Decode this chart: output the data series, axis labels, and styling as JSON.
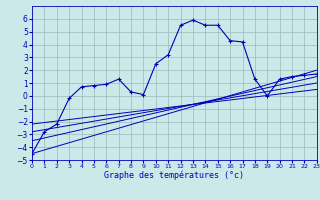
{
  "xlabel": "Graphe des températures (°c)",
  "x_main": [
    0,
    1,
    2,
    3,
    4,
    5,
    6,
    7,
    8,
    9,
    10,
    11,
    12,
    13,
    14,
    15,
    16,
    17,
    18,
    19,
    20,
    21,
    22,
    23
  ],
  "y_main": [
    -4.5,
    -2.8,
    -2.2,
    -0.2,
    0.7,
    0.8,
    0.9,
    1.3,
    0.3,
    0.1,
    2.5,
    3.2,
    5.5,
    5.9,
    5.5,
    5.5,
    4.3,
    4.2,
    1.3,
    0.0,
    1.3,
    1.5,
    1.6,
    1.7
  ],
  "straight_lines": [
    {
      "x0": 0,
      "y0": -4.5,
      "x1": 23,
      "y1": 2.0
    },
    {
      "x0": 0,
      "y0": -3.5,
      "x1": 23,
      "y1": 1.5
    },
    {
      "x0": 0,
      "y0": -2.8,
      "x1": 23,
      "y1": 1.0
    },
    {
      "x0": 0,
      "y0": -2.2,
      "x1": 23,
      "y1": 0.5
    }
  ],
  "xlim": [
    0,
    23
  ],
  "ylim": [
    -5,
    7
  ],
  "yticks": [
    -5,
    -4,
    -3,
    -2,
    -1,
    0,
    1,
    2,
    3,
    4,
    5,
    6
  ],
  "xticks": [
    0,
    1,
    2,
    3,
    4,
    5,
    6,
    7,
    8,
    9,
    10,
    11,
    12,
    13,
    14,
    15,
    16,
    17,
    18,
    19,
    20,
    21,
    22,
    23
  ],
  "line_color": "#0000bb",
  "bg_color": "#cce8e8",
  "grid_color": "#99bbbb"
}
